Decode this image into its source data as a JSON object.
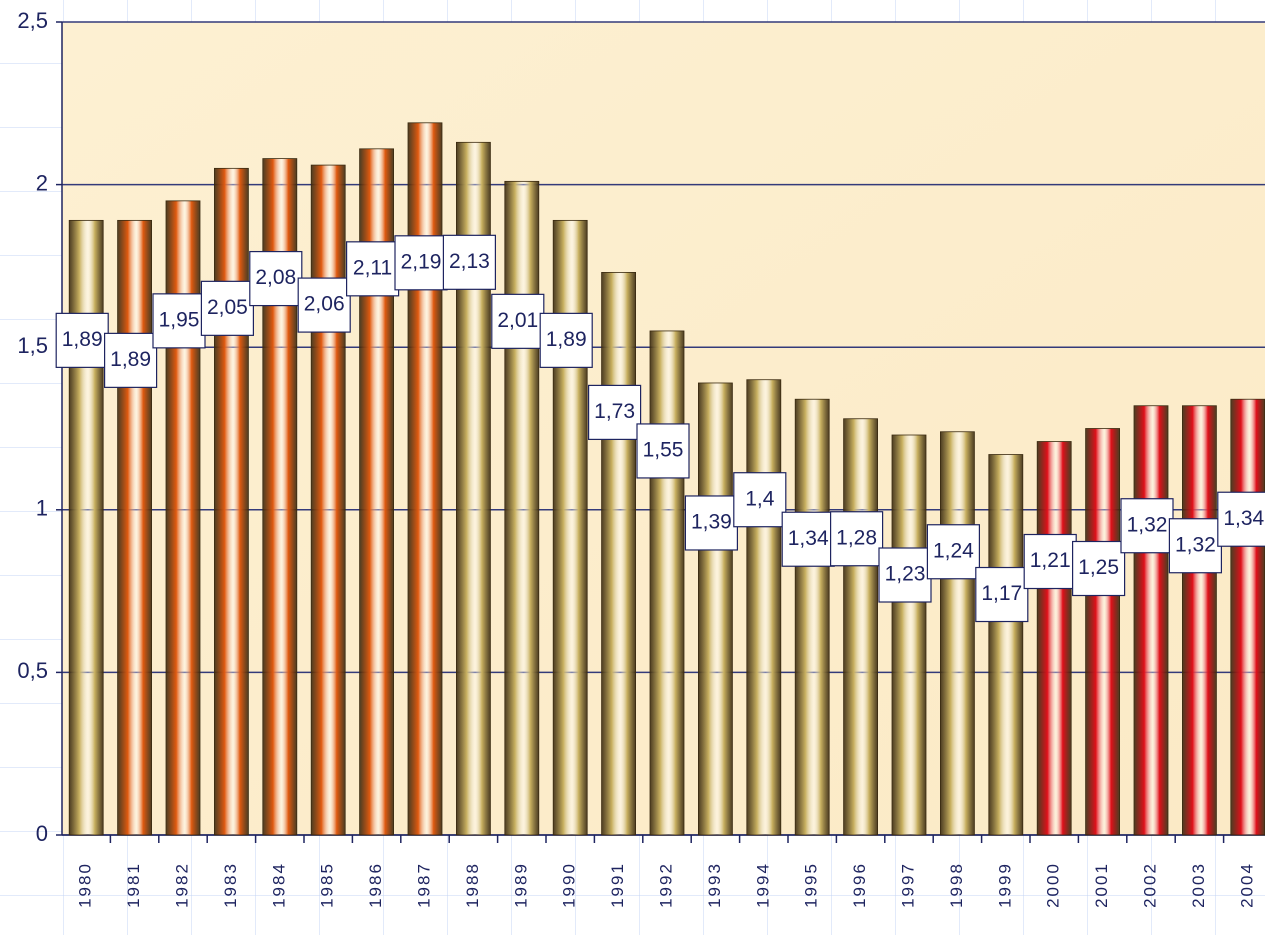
{
  "chart_data": {
    "type": "bar",
    "categories": [
      "1980",
      "1981",
      "1982",
      "1983",
      "1984",
      "1985",
      "1986",
      "1987",
      "1988",
      "1989",
      "1990",
      "1991",
      "1992",
      "1993",
      "1994",
      "1995",
      "1996",
      "1997",
      "1998",
      "1999",
      "2000",
      "2001",
      "2002",
      "2003",
      "2004"
    ],
    "values": [
      1.89,
      1.89,
      1.95,
      2.05,
      2.08,
      2.06,
      2.11,
      2.19,
      2.13,
      2.01,
      1.89,
      1.73,
      1.55,
      1.39,
      1.4,
      1.34,
      1.28,
      1.23,
      1.24,
      1.17,
      1.21,
      1.25,
      1.32,
      1.32,
      1.34
    ],
    "value_labels": [
      "1,89",
      "1,89",
      "1,95",
      "2,05",
      "2,08",
      "2,06",
      "2,11",
      "2,19",
      "2,13",
      "2,01",
      "1,89",
      "1,73",
      "1,55",
      "1,39",
      "1,4",
      "1,34",
      "1,28",
      "1,23",
      "1,24",
      "1,17",
      "1,21",
      "1,25",
      "1,32",
      "1,32",
      "1,34"
    ],
    "colors": [
      "#c8b060",
      "#e05a10",
      "#e05a10",
      "#e05a10",
      "#e05a10",
      "#e05a10",
      "#e05a10",
      "#e05a10",
      "#c8b060",
      "#c8b060",
      "#c8b060",
      "#c8b060",
      "#c8b060",
      "#c8b060",
      "#c8b060",
      "#c8b060",
      "#c8b060",
      "#c8b060",
      "#c8b060",
      "#c8b060",
      "#e0101a",
      "#e0101a",
      "#e0101a",
      "#e0101a",
      "#e0101a"
    ],
    "ylim": [
      0,
      2.5
    ],
    "yticks": [
      0,
      {
        "value": 0.5,
        "label": "0,5"
      },
      1,
      {
        "value": 1.5,
        "label": "1,5"
      },
      2,
      {
        "value": 2.5,
        "label": "2,5"
      }
    ],
    "grid": true
  }
}
